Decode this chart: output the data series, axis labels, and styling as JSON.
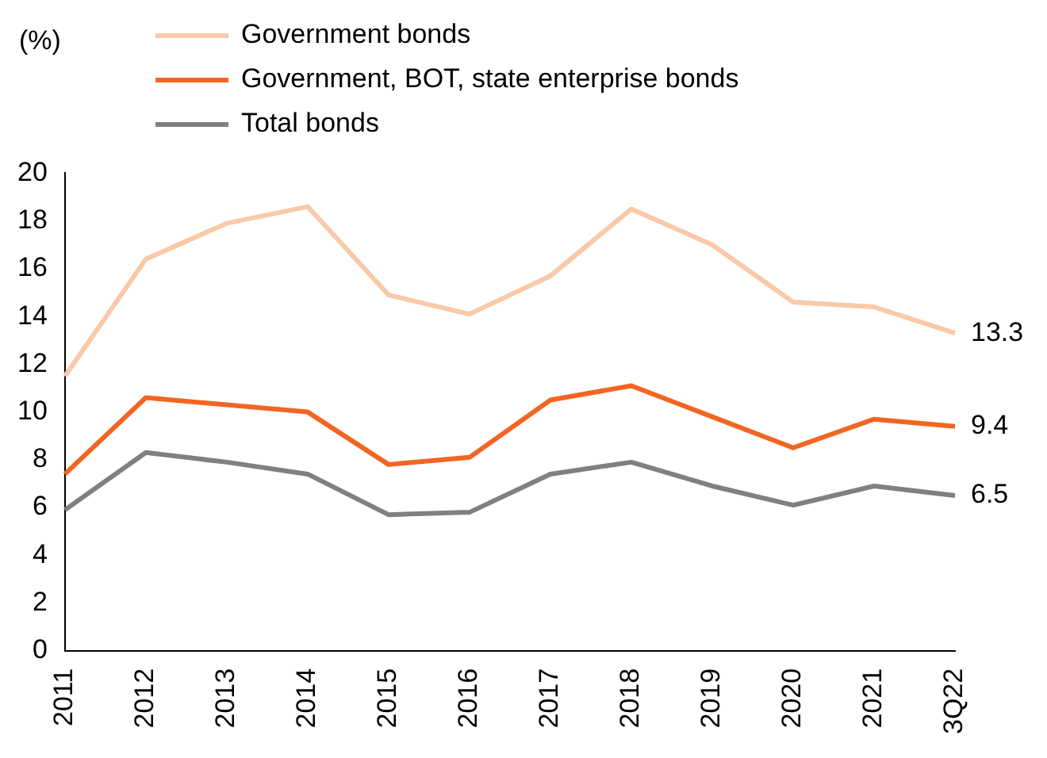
{
  "chart_data": {
    "type": "line",
    "ylabel": "(%)",
    "categories": [
      "2011",
      "2012",
      "2013",
      "2014",
      "2015",
      "2016",
      "2017",
      "2018",
      "2019",
      "2020",
      "2021",
      "3Q22"
    ],
    "series": [
      {
        "name": "Government bonds",
        "color": "#f9c9a8",
        "values": [
          11.5,
          16.4,
          17.9,
          18.6,
          14.9,
          14.1,
          15.7,
          18.5,
          17.0,
          14.6,
          14.4,
          13.3
        ],
        "value_labels": [
          null,
          null,
          null,
          null,
          null,
          null,
          null,
          null,
          null,
          null,
          null,
          "13.3"
        ]
      },
      {
        "name": "Government, BOT, state enterprise bonds",
        "color": "#f26522",
        "values": [
          7.4,
          10.6,
          10.3,
          10.0,
          7.8,
          8.1,
          10.5,
          11.1,
          9.8,
          8.5,
          9.7,
          9.4
        ],
        "value_labels": [
          null,
          null,
          null,
          null,
          null,
          null,
          null,
          null,
          null,
          null,
          null,
          "9.4"
        ]
      },
      {
        "name": "Total bonds",
        "color": "#808080",
        "values": [
          5.9,
          8.3,
          7.9,
          7.4,
          5.7,
          5.8,
          7.4,
          7.9,
          6.9,
          6.1,
          6.9,
          6.5
        ],
        "value_labels": [
          null,
          null,
          null,
          null,
          null,
          null,
          null,
          null,
          null,
          null,
          null,
          "6.5"
        ]
      }
    ],
    "ylim": [
      0,
      20
    ],
    "yticks": [
      0,
      2,
      4,
      6,
      8,
      10,
      12,
      14,
      16,
      18,
      20
    ],
    "grid": false,
    "legend": "top",
    "marker": "none",
    "line_style": "solid"
  }
}
